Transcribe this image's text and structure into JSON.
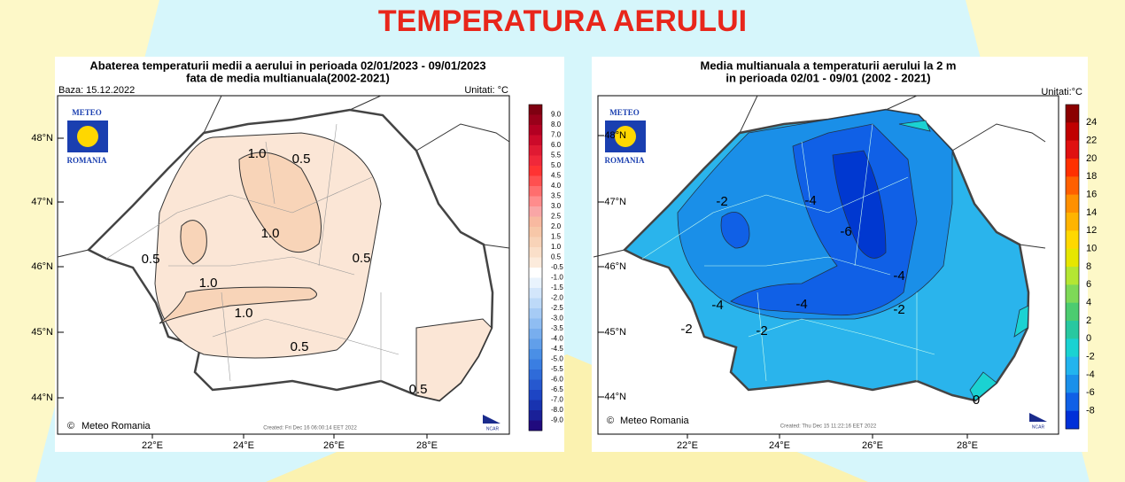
{
  "title": "TEMPERATURA AERULUI",
  "panels": [
    {
      "title_lines": [
        "Abaterea temperaturii medii a aerului in perioada 02/01/2023 - 09/01/2023",
        "fata de media multianuala(2002-2021)"
      ],
      "base": "Baza: 15.12.2022",
      "units": "Unitati: °C",
      "lat_labels": [
        "48°N",
        "47°N",
        "46°N",
        "45°N",
        "44°N"
      ],
      "lon_labels": [
        "22°E",
        "24°E",
        "26°E",
        "28°E"
      ],
      "logo": {
        "top": "METEO",
        "bottom": "ROMANIA"
      },
      "contour_labels": [
        "1.0",
        "0.5",
        "1.0",
        "0.5",
        "1.0",
        "1.0",
        "0.5",
        "0.5",
        "0.5"
      ],
      "credit": "Meteo Romania",
      "created": "Created: Fri Dec 16 06:00:14 EET 2022",
      "ncar": "NCAR",
      "colorbar": {
        "labels": [
          "9.0",
          "8.0",
          "7.0",
          "6.0",
          "5.5",
          "5.0",
          "4.5",
          "4.0",
          "3.5",
          "3.0",
          "2.5",
          "2.0",
          "1.5",
          "1.0",
          "0.5",
          "-0.5",
          "-1.0",
          "-1.5",
          "-2.0",
          "-2.5",
          "-3.0",
          "-3.5",
          "-4.0",
          "-4.5",
          "-5.0",
          "-5.5",
          "-6.0",
          "-6.5",
          "-7.0",
          "-8.0",
          "-9.0"
        ],
        "colors": [
          "#7f0011",
          "#99001a",
          "#b30022",
          "#cc0a2a",
          "#e01a33",
          "#f0283a",
          "#ff3333",
          "#ff5050",
          "#ff6e6e",
          "#ff8c8c",
          "#f9a6a6",
          "#f8b9a0",
          "#f7c7a8",
          "#f8d3b8",
          "#fadfc9",
          "#fcebdc",
          "#ffffff",
          "#e9f3fd",
          "#d3e6fb",
          "#bdd9f8",
          "#a6cbf5",
          "#8fbdf2",
          "#78aeee",
          "#619fea",
          "#4a8fe6",
          "#3a7ee2",
          "#2f6bd9",
          "#2658cf",
          "#1d45c4",
          "#1833b0",
          "#1a2098",
          "#200a7e"
        ]
      }
    },
    {
      "title_lines": [
        "Media multianuala a temperaturii aerului la 2 m",
        "in perioada 02/01 - 09/01 (2002 - 2021)"
      ],
      "units": "Unitati:°C",
      "lat_labels": [
        "48°N",
        "47°N",
        "46°N",
        "45°N",
        "44°N"
      ],
      "lon_labels": [
        "22°E",
        "24°E",
        "26°E",
        "28°E"
      ],
      "logo": {
        "top": "METEO",
        "bottom": "ROMANIA"
      },
      "contour_labels": [
        "-2",
        "-4",
        "-6",
        "-4",
        "-4",
        "-4",
        "-2",
        "-2",
        "-2",
        "0"
      ],
      "credit": "Meteo Romania",
      "created": "Created: Thu Dec 15 11:22:16 EET 2022",
      "ncar": "NCAR",
      "colorbar": {
        "labels": [
          "24",
          "22",
          "20",
          "18",
          "16",
          "14",
          "12",
          "10",
          "8",
          "6",
          "4",
          "2",
          "0",
          "-2",
          "-4",
          "-6",
          "-8"
        ],
        "colors": [
          "#8b0000",
          "#c00000",
          "#e01010",
          "#ff3000",
          "#ff6000",
          "#ff9000",
          "#ffb400",
          "#ffd800",
          "#e6e600",
          "#b4e633",
          "#7ed957",
          "#4ccc70",
          "#28c8a0",
          "#1ad2d2",
          "#22b4ee",
          "#1a90ea",
          "#1060e6",
          "#0030d8"
        ]
      }
    }
  ]
}
